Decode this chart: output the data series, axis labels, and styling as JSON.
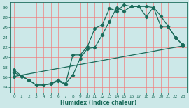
{
  "xlabel": "Humidex (Indice chaleur)",
  "xlim": [
    -0.5,
    23.5
  ],
  "ylim": [
    13,
    31
  ],
  "yticks": [
    14,
    16,
    18,
    20,
    22,
    24,
    26,
    28,
    30
  ],
  "xticks": [
    0,
    1,
    2,
    3,
    4,
    5,
    6,
    7,
    8,
    9,
    10,
    11,
    12,
    13,
    14,
    15,
    16,
    17,
    18,
    19,
    20,
    21,
    22,
    23
  ],
  "bg_color": "#cce8e8",
  "line_color": "#1a6b5a",
  "grid_color": "#f08080",
  "line1_x": [
    0,
    1,
    2,
    3,
    4,
    5,
    6,
    7,
    8,
    9,
    10,
    11,
    12,
    13,
    14,
    15,
    16,
    17,
    18,
    19,
    20,
    21,
    22,
    23
  ],
  "line1_y": [
    17.5,
    16.3,
    15.5,
    14.5,
    14.5,
    14.7,
    15.3,
    14.6,
    20.5,
    20.5,
    22.2,
    25.8,
    26.5,
    29.8,
    29.3,
    30.5,
    30.2,
    30.2,
    30.2,
    30.0,
    26.2,
    26.2,
    24.0,
    22.5
  ],
  "line2_x": [
    0,
    1,
    2,
    3,
    4,
    5,
    6,
    7,
    8,
    9,
    10,
    11,
    12,
    13,
    14,
    15,
    16,
    17,
    18,
    19,
    20,
    21,
    22,
    23
  ],
  "line2_y": [
    17.0,
    16.2,
    15.5,
    14.5,
    14.5,
    14.8,
    15.5,
    14.8,
    16.4,
    19.8,
    21.8,
    22.0,
    24.5,
    27.2,
    30.0,
    29.3,
    30.2,
    30.2,
    28.2,
    30.0,
    28.3,
    26.2,
    24.0,
    22.5
  ],
  "line3_x": [
    0,
    23
  ],
  "line3_y": [
    16.2,
    22.3
  ]
}
